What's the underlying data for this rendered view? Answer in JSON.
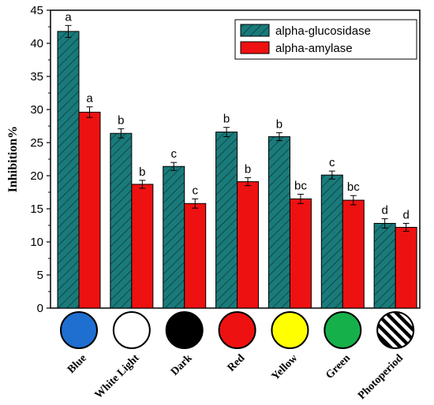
{
  "chart_data": {
    "type": "bar",
    "ylabel": "Inhibition%",
    "xlabel": "",
    "ylim": [
      0,
      45
    ],
    "yticks": [
      0,
      5,
      10,
      15,
      20,
      25,
      30,
      35,
      40,
      45
    ],
    "categories": [
      "Blue",
      "White Light",
      "Dark",
      "Red",
      "Yellow",
      "Green",
      "Photoperiod"
    ],
    "series": [
      {
        "name": "alpha-glucosidase",
        "color": "#1a7a7a",
        "pattern": "diagonal-hatch",
        "values": [
          41.8,
          26.4,
          21.4,
          26.6,
          25.9,
          20.1,
          12.8
        ],
        "errors": [
          0.9,
          0.7,
          0.6,
          0.7,
          0.6,
          0.6,
          0.7
        ],
        "labels": [
          "a",
          "b",
          "c",
          "b",
          "b",
          "c",
          "d"
        ]
      },
      {
        "name": "alpha-amylase",
        "color": "#ee1111",
        "values": [
          29.6,
          18.7,
          15.8,
          19.1,
          16.5,
          16.3,
          12.2
        ],
        "errors": [
          0.8,
          0.6,
          0.7,
          0.6,
          0.7,
          0.7,
          0.6
        ],
        "labels": [
          "a",
          "b",
          "c",
          "b",
          "bc",
          "bc",
          "d"
        ]
      }
    ],
    "legend_position": "top-right",
    "category_swatches": [
      {
        "category": "Blue",
        "fill": "#1f6fd1"
      },
      {
        "category": "White Light",
        "fill": "#ffffff"
      },
      {
        "category": "Dark",
        "fill": "#000000"
      },
      {
        "category": "Red",
        "fill": "#ee1111"
      },
      {
        "category": "Yellow",
        "fill": "#ffff00"
      },
      {
        "category": "Green",
        "fill": "#16b04a"
      },
      {
        "category": "Photoperiod",
        "fill": "stripes"
      }
    ]
  }
}
